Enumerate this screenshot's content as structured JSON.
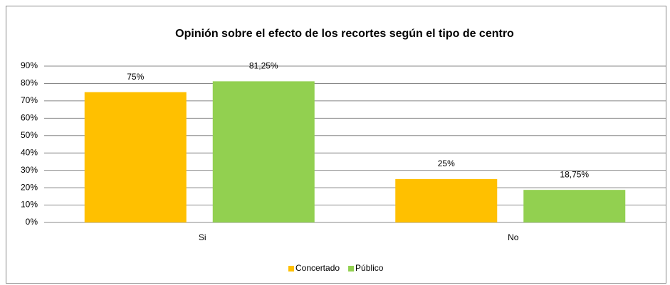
{
  "chart_data": {
    "type": "bar",
    "title": "Opinión sobre el efecto de los recortes según el tipo de centro",
    "categories": [
      "Si",
      "No"
    ],
    "series": [
      {
        "name": "Concertado",
        "color": "#ffc000",
        "label_color": "#ff0000",
        "values": [
          75,
          25
        ],
        "value_labels": [
          "75%",
          "25%"
        ]
      },
      {
        "name": "Público",
        "color": "#92d050",
        "label_color": "#00b050",
        "values": [
          81.25,
          18.75
        ],
        "value_labels": [
          "81,25%",
          "18,75%"
        ]
      }
    ],
    "ylim": [
      0,
      90
    ],
    "yticks": [
      {
        "value": 0,
        "label": "0%"
      },
      {
        "value": 10,
        "label": "10%"
      },
      {
        "value": 20,
        "label": "20%"
      },
      {
        "value": 30,
        "label": "30%"
      },
      {
        "value": 40,
        "label": "40%"
      },
      {
        "value": 50,
        "label": "50%"
      },
      {
        "value": 60,
        "label": "60%"
      },
      {
        "value": 70,
        "label": "70%"
      },
      {
        "value": 80,
        "label": "80%"
      },
      {
        "value": 90,
        "label": "90%"
      }
    ],
    "grid": true,
    "legend": "bottom"
  }
}
